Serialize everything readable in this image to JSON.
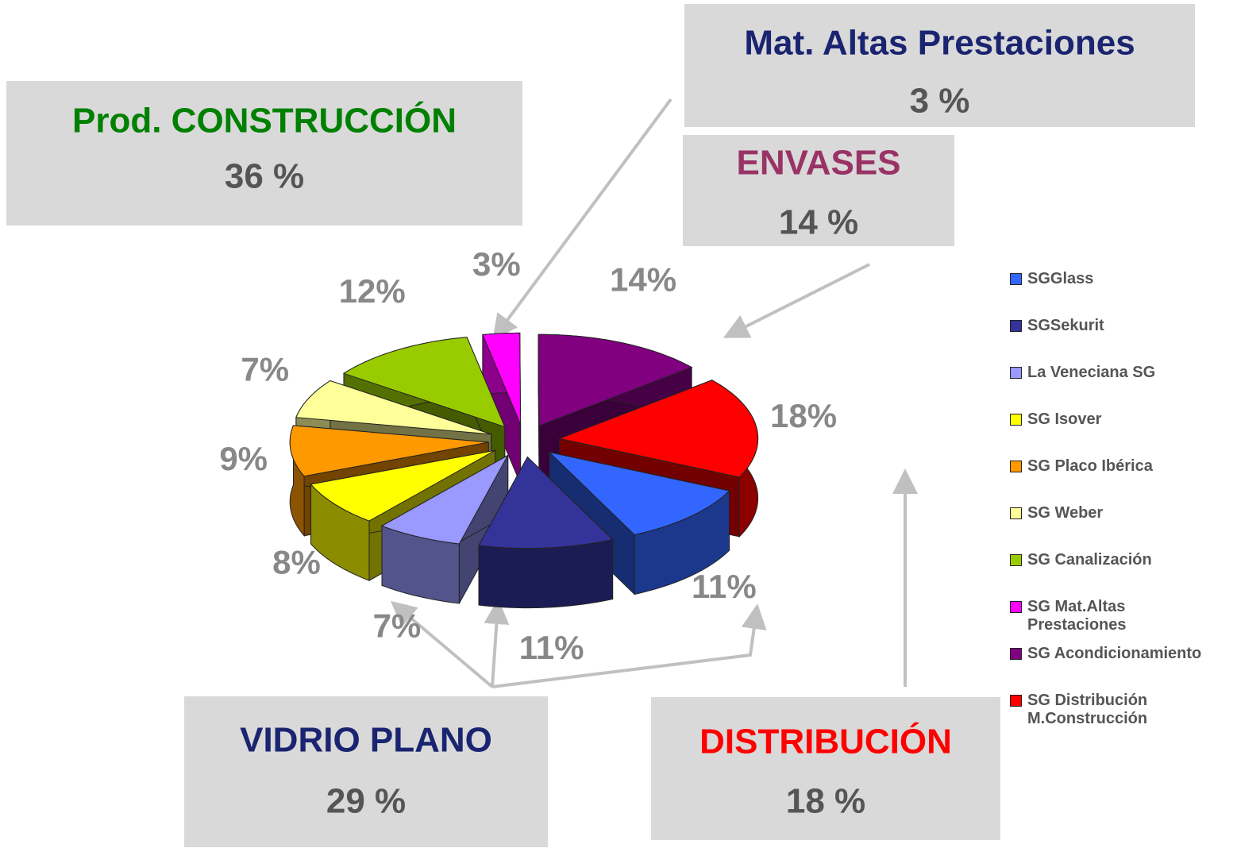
{
  "chart_data": {
    "type": "pie3d",
    "categories": [
      "SGGlass",
      "SGSekurit",
      "La Veneciana SG",
      "SG Isover",
      "SG Placo Ibérica",
      "SG Weber",
      "SG Canalización",
      "SG Mat.Altas Prestaciones",
      "SG Acondicionamiento",
      "SG Distribución M.Construcción"
    ],
    "values": [
      11,
      11,
      7,
      8,
      9,
      7,
      12,
      3,
      14,
      18
    ],
    "value_labels": [
      "11%",
      "11%",
      "7%",
      "8%",
      "9%",
      "7%",
      "12%",
      "3%",
      "14%",
      "18%"
    ],
    "colors": [
      "#3366ff",
      "#333399",
      "#9999ff",
      "#ffff00",
      "#ff9900",
      "#ffff99",
      "#99cc00",
      "#ff00ff",
      "#800080",
      "#ff0000"
    ],
    "legend": "right",
    "annotations": [
      {
        "title": "Prod. CONSTRUCCIÓN",
        "label": "36 %",
        "color": "#008000"
      },
      {
        "title": "Mat. Altas Prestaciones",
        "label": "3 %",
        "color": "#1a2470"
      },
      {
        "title": "ENVASES",
        "label": "14 %",
        "color": "#993366"
      },
      {
        "title": "VIDRIO PLANO",
        "label": "29 %",
        "color": "#1a2470"
      },
      {
        "title": "DISTRIBUCIÓN",
        "label": "18 %",
        "color": "#ff0000"
      }
    ]
  }
}
